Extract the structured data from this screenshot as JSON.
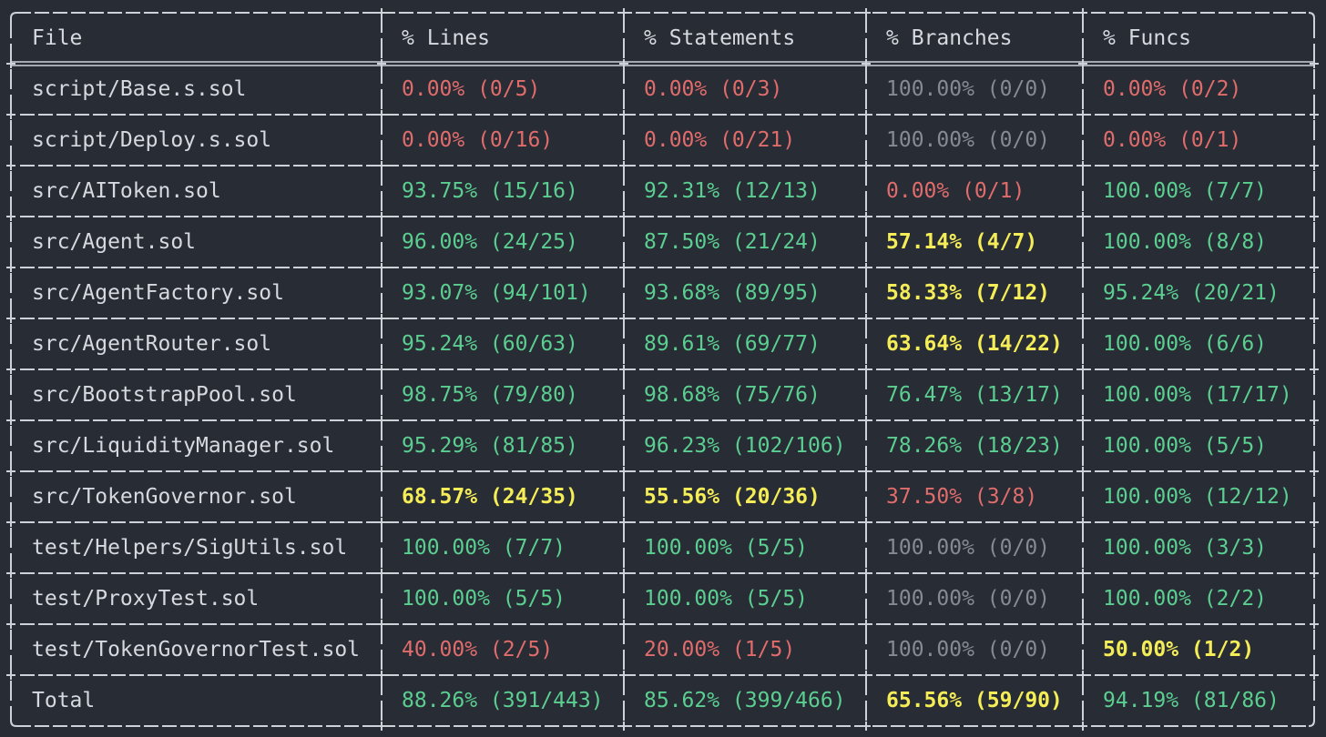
{
  "table": {
    "headers": [
      "File",
      "% Lines",
      "% Statements",
      "% Branches",
      "% Funcs"
    ],
    "rows": [
      {
        "file": "script/Base.s.sol",
        "cells": [
          {
            "text": "0.00% (0/5)",
            "status": "red"
          },
          {
            "text": "0.00% (0/3)",
            "status": "red"
          },
          {
            "text": "100.00% (0/0)",
            "status": "gray"
          },
          {
            "text": "0.00% (0/2)",
            "status": "red"
          }
        ]
      },
      {
        "file": "script/Deploy.s.sol",
        "cells": [
          {
            "text": "0.00% (0/16)",
            "status": "red"
          },
          {
            "text": "0.00% (0/21)",
            "status": "red"
          },
          {
            "text": "100.00% (0/0)",
            "status": "gray"
          },
          {
            "text": "0.00% (0/1)",
            "status": "red"
          }
        ]
      },
      {
        "file": "src/AIToken.sol",
        "cells": [
          {
            "text": "93.75% (15/16)",
            "status": "green"
          },
          {
            "text": "92.31% (12/13)",
            "status": "green"
          },
          {
            "text": "0.00% (0/1)",
            "status": "red"
          },
          {
            "text": "100.00% (7/7)",
            "status": "green"
          }
        ]
      },
      {
        "file": "src/Agent.sol",
        "cells": [
          {
            "text": "96.00% (24/25)",
            "status": "green"
          },
          {
            "text": "87.50% (21/24)",
            "status": "green"
          },
          {
            "text": "57.14% (4/7)",
            "status": "yellow"
          },
          {
            "text": "100.00% (8/8)",
            "status": "green"
          }
        ]
      },
      {
        "file": "src/AgentFactory.sol",
        "cells": [
          {
            "text": "93.07% (94/101)",
            "status": "green"
          },
          {
            "text": "93.68% (89/95)",
            "status": "green"
          },
          {
            "text": "58.33% (7/12)",
            "status": "yellow"
          },
          {
            "text": "95.24% (20/21)",
            "status": "green"
          }
        ]
      },
      {
        "file": "src/AgentRouter.sol",
        "cells": [
          {
            "text": "95.24% (60/63)",
            "status": "green"
          },
          {
            "text": "89.61% (69/77)",
            "status": "green"
          },
          {
            "text": "63.64% (14/22)",
            "status": "yellow"
          },
          {
            "text": "100.00% (6/6)",
            "status": "green"
          }
        ]
      },
      {
        "file": "src/BootstrapPool.sol",
        "cells": [
          {
            "text": "98.75% (79/80)",
            "status": "green"
          },
          {
            "text": "98.68% (75/76)",
            "status": "green"
          },
          {
            "text": "76.47% (13/17)",
            "status": "green"
          },
          {
            "text": "100.00% (17/17)",
            "status": "green"
          }
        ]
      },
      {
        "file": "src/LiquidityManager.sol",
        "cells": [
          {
            "text": "95.29% (81/85)",
            "status": "green"
          },
          {
            "text": "96.23% (102/106)",
            "status": "green"
          },
          {
            "text": "78.26% (18/23)",
            "status": "green"
          },
          {
            "text": "100.00% (5/5)",
            "status": "green"
          }
        ]
      },
      {
        "file": "src/TokenGovernor.sol",
        "cells": [
          {
            "text": "68.57% (24/35)",
            "status": "yellow"
          },
          {
            "text": "55.56% (20/36)",
            "status": "yellow"
          },
          {
            "text": "37.50% (3/8)",
            "status": "red"
          },
          {
            "text": "100.00% (12/12)",
            "status": "green"
          }
        ]
      },
      {
        "file": "test/Helpers/SigUtils.sol",
        "cells": [
          {
            "text": "100.00% (7/7)",
            "status": "green"
          },
          {
            "text": "100.00% (5/5)",
            "status": "green"
          },
          {
            "text": "100.00% (0/0)",
            "status": "gray"
          },
          {
            "text": "100.00% (3/3)",
            "status": "green"
          }
        ]
      },
      {
        "file": "test/ProxyTest.sol",
        "cells": [
          {
            "text": "100.00% (5/5)",
            "status": "green"
          },
          {
            "text": "100.00% (5/5)",
            "status": "green"
          },
          {
            "text": "100.00% (0/0)",
            "status": "gray"
          },
          {
            "text": "100.00% (2/2)",
            "status": "green"
          }
        ]
      },
      {
        "file": "test/TokenGovernorTest.sol",
        "cells": [
          {
            "text": "40.00% (2/5)",
            "status": "red"
          },
          {
            "text": "20.00% (1/5)",
            "status": "red"
          },
          {
            "text": "100.00% (0/0)",
            "status": "gray"
          },
          {
            "text": "50.00% (1/2)",
            "status": "yellow"
          }
        ]
      },
      {
        "file": "Total",
        "cells": [
          {
            "text": "88.26% (391/443)",
            "status": "green"
          },
          {
            "text": "85.62% (399/466)",
            "status": "green"
          },
          {
            "text": "65.56% (59/90)",
            "status": "yellow"
          },
          {
            "text": "94.19% (81/86)",
            "status": "green"
          }
        ]
      }
    ]
  },
  "colors": {
    "background": "#282c34",
    "text": "#d6dae0",
    "border": "#cdd2d9",
    "green": "#5bcf91",
    "red": "#e06c6c",
    "yellow": "#f5ed57",
    "gray": "#868b93"
  }
}
